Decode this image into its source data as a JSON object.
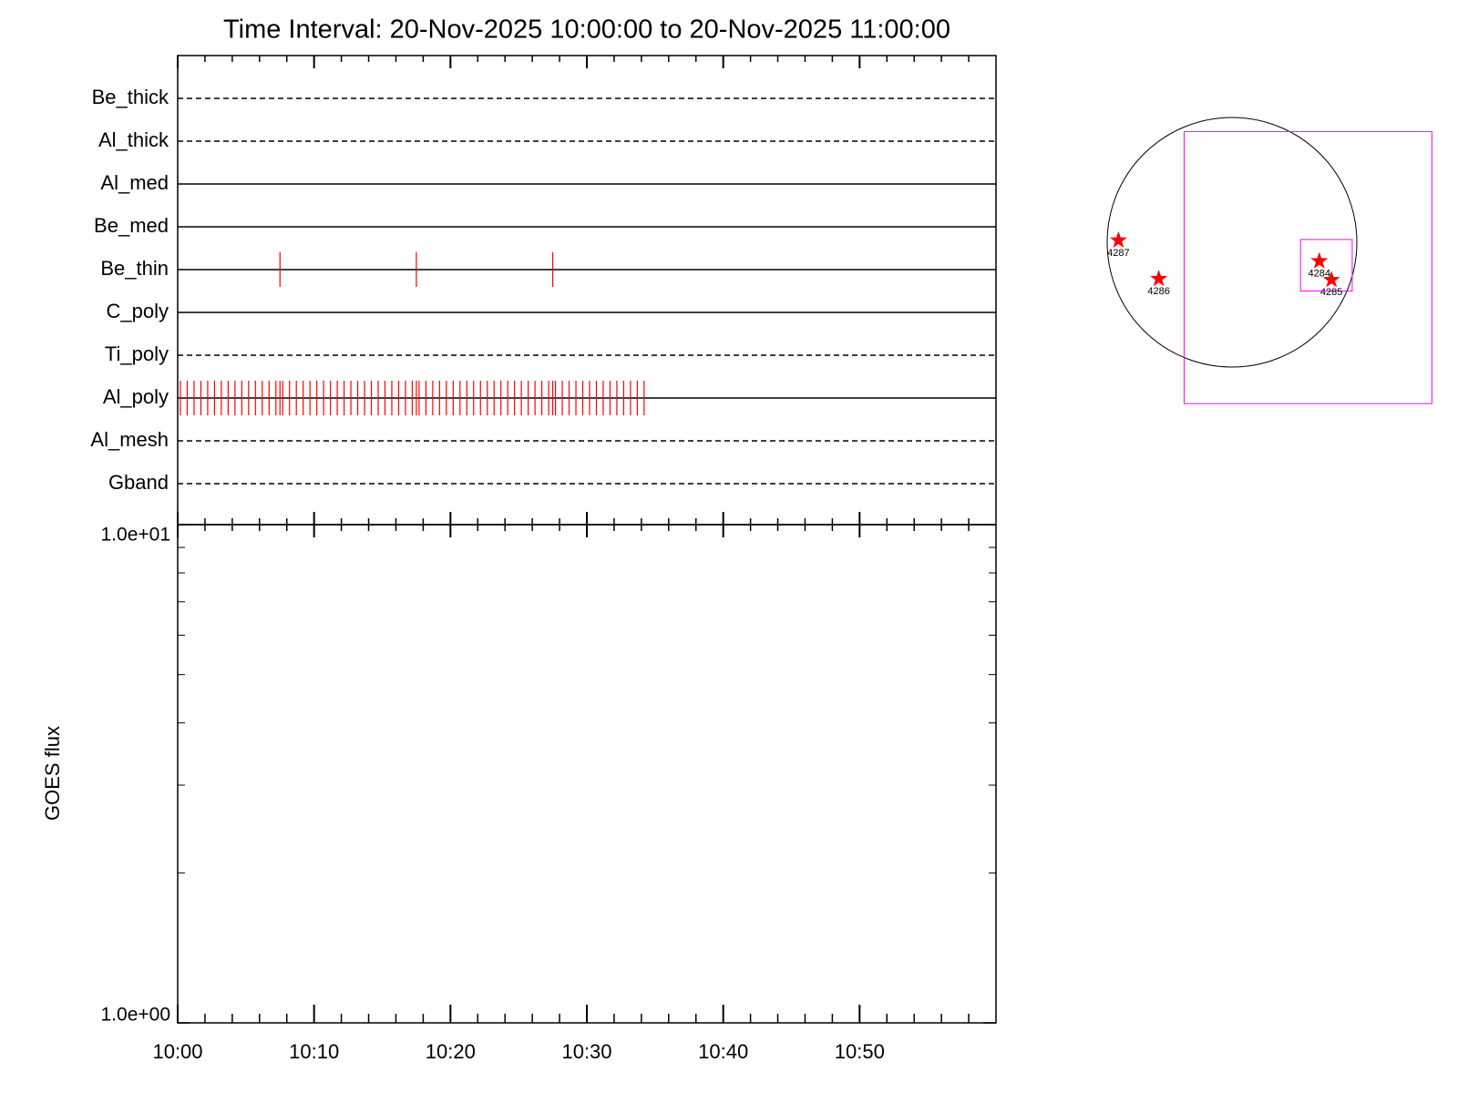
{
  "chart_data": [
    {
      "type": "timeline",
      "title": "Time Interval: 20-Nov-2025 10:00:00 to 20-Nov-2025 11:00:00",
      "xlim": [
        0,
        60
      ],
      "xticks": [
        0,
        10,
        20,
        30,
        40,
        50
      ],
      "xminorticks": [
        2,
        4,
        6,
        8,
        12,
        14,
        16,
        18,
        22,
        24,
        26,
        28,
        32,
        34,
        36,
        38,
        42,
        44,
        46,
        48,
        52,
        54,
        56,
        58
      ],
      "event_color": "#ff0000",
      "rows": [
        {
          "name": "Be_thick",
          "style": "dashed",
          "events": []
        },
        {
          "name": "Al_thick",
          "style": "dashed",
          "events": []
        },
        {
          "name": "Al_med",
          "style": "solid",
          "events": []
        },
        {
          "name": "Be_med",
          "style": "solid",
          "events": []
        },
        {
          "name": "Be_thin",
          "style": "solid",
          "events": [
            7.5,
            17.5,
            27.5
          ]
        },
        {
          "name": "C_poly",
          "style": "solid",
          "events": []
        },
        {
          "name": "Ti_poly",
          "style": "dashed",
          "events": []
        },
        {
          "name": "Al_poly",
          "style": "solid",
          "events": [
            0.2,
            0.7,
            1.2,
            1.7,
            2.2,
            2.7,
            3.2,
            3.7,
            4.2,
            4.7,
            5.2,
            5.7,
            6.2,
            6.7,
            7.2,
            7.5,
            7.7,
            8.2,
            8.7,
            9.2,
            9.7,
            10.2,
            10.7,
            11.2,
            11.7,
            12.2,
            12.7,
            13.2,
            13.7,
            14.2,
            14.7,
            15.2,
            15.7,
            16.2,
            16.7,
            17.2,
            17.5,
            17.7,
            18.2,
            18.7,
            19.2,
            19.7,
            20.2,
            20.7,
            21.2,
            21.7,
            22.2,
            22.7,
            23.2,
            23.7,
            24.2,
            24.7,
            25.2,
            25.7,
            26.2,
            26.7,
            27.2,
            27.5,
            27.7,
            28.2,
            28.7,
            29.2,
            29.7,
            30.2,
            30.7,
            31.2,
            31.7,
            32.2,
            32.7,
            33.2,
            33.7,
            34.2
          ]
        },
        {
          "name": "Al_mesh",
          "style": "dashed",
          "events": []
        },
        {
          "name": "Gband",
          "style": "dashed",
          "events": []
        }
      ]
    },
    {
      "type": "line",
      "ylabel": "GOES flux",
      "log": true,
      "xlim": [
        0,
        60
      ],
      "xticks": [
        {
          "value": 0,
          "label": "10:00"
        },
        {
          "value": 10,
          "label": "10:10"
        },
        {
          "value": 20,
          "label": "10:20"
        },
        {
          "value": 30,
          "label": "10:30"
        },
        {
          "value": 40,
          "label": "10:40"
        },
        {
          "value": 50,
          "label": "10:50"
        }
      ],
      "xminorticks": [
        2,
        4,
        6,
        8,
        12,
        14,
        16,
        18,
        22,
        24,
        26,
        28,
        32,
        34,
        36,
        38,
        42,
        44,
        46,
        48,
        52,
        54,
        56,
        58
      ],
      "ylim": [
        1,
        10
      ],
      "yticks": [
        {
          "value": 1,
          "label": "1.0e+00"
        },
        {
          "value": 10,
          "label": "1.0e+01"
        }
      ],
      "yminorticks": [
        2,
        3,
        4,
        5,
        6,
        7,
        8,
        9
      ]
    },
    {
      "type": "sunmap",
      "rsun": 970,
      "disk_color": "#000000",
      "box_color": "#ff00ff",
      "marker_color": "#ff0000",
      "fov": {
        "xlim": [
          -372,
          1553
        ],
        "ylim": [
          -1254,
          861
        ]
      },
      "box": {
        "xlim": [
          532,
          934
        ],
        "ylim": [
          -379,
          22
        ]
      },
      "regions": [
        {
          "label": "4287",
          "x": -882,
          "y": 15
        },
        {
          "label": "4286",
          "x": -569,
          "y": -284
        },
        {
          "label": "4284",
          "x": 678,
          "y": -146
        },
        {
          "label": "4285",
          "x": 773,
          "y": -292
        }
      ]
    }
  ]
}
